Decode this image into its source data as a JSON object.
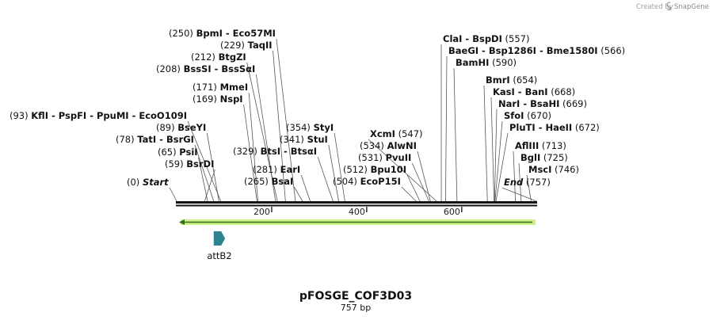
{
  "credit": {
    "prefix": "Created by",
    "brand": "SnapGene"
  },
  "map": {
    "name": "pFOSGE_COF3D03",
    "length_label": "757 bp",
    "length": 757
  },
  "ticks": [
    "200",
    "400",
    "600"
  ],
  "tick_values": [
    200,
    400,
    600
  ],
  "features": [
    {
      "name": "attB2",
      "start": 78,
      "end": 102,
      "color": "#2e8391"
    }
  ],
  "sites": [
    {
      "pos": "(0)",
      "names": [
        "Start"
      ],
      "italic": true,
      "loc": 0
    },
    {
      "pos": "(59)",
      "names": [
        "BsrDI"
      ],
      "loc": 59
    },
    {
      "pos": "(65)",
      "names": [
        "PsiI"
      ],
      "loc": 65
    },
    {
      "pos": "(78)",
      "names": [
        "TatI",
        "BsrGI"
      ],
      "loc": 78
    },
    {
      "pos": "(89)",
      "names": [
        "BseYI"
      ],
      "loc": 89
    },
    {
      "pos": "(93)",
      "names": [
        "KflI",
        "PspFI",
        "PpuMI",
        "EcoO109I"
      ],
      "loc": 93
    },
    {
      "pos": "(169)",
      "names": [
        "NspI"
      ],
      "loc": 169
    },
    {
      "pos": "(171)",
      "names": [
        "MmeI"
      ],
      "loc": 171
    },
    {
      "pos": "(208)",
      "names": [
        "BssSI",
        "BssSαI"
      ],
      "loc": 208
    },
    {
      "pos": "(212)",
      "names": [
        "BtgZI"
      ],
      "loc": 212
    },
    {
      "pos": "(229)",
      "names": [
        "TaqII"
      ],
      "loc": 229
    },
    {
      "pos": "(250)",
      "names": [
        "BpmI",
        "Eco57MI"
      ],
      "loc": 250
    },
    {
      "pos": "(265)",
      "names": [
        "BsaI"
      ],
      "loc": 265
    },
    {
      "pos": "(281)",
      "names": [
        "EarI"
      ],
      "loc": 281
    },
    {
      "pos": "(329)",
      "names": [
        "BtsI",
        "BtsαI"
      ],
      "loc": 329
    },
    {
      "pos": "(341)",
      "names": [
        "StuI"
      ],
      "loc": 341
    },
    {
      "pos": "(354)",
      "names": [
        "StyI"
      ],
      "loc": 354
    },
    {
      "pos": "(504)",
      "names": [
        "EcoP15I"
      ],
      "loc": 504
    },
    {
      "pos": "(512)",
      "names": [
        "Bpu10I"
      ],
      "loc": 512
    },
    {
      "pos": "(531)",
      "names": [
        "PvuII"
      ],
      "loc": 531
    },
    {
      "pos": "(534)",
      "names": [
        "AlwNI"
      ],
      "loc": 534
    },
    {
      "pos": "(547)",
      "names": [
        "XcmI"
      ],
      "loc": 547
    },
    {
      "pos": "(557)",
      "names": [
        "ClaI",
        "BspDI"
      ],
      "loc": 557
    },
    {
      "pos": "(566)",
      "names": [
        "BaeGI",
        "Bsp1286I",
        "Bme1580I"
      ],
      "loc": 566
    },
    {
      "pos": "(590)",
      "names": [
        "BamHI"
      ],
      "loc": 590
    },
    {
      "pos": "(654)",
      "names": [
        "BmrI"
      ],
      "loc": 654
    },
    {
      "pos": "(668)",
      "names": [
        "KasI",
        "BanI"
      ],
      "loc": 668
    },
    {
      "pos": "(669)",
      "names": [
        "NarI",
        "BsaHI"
      ],
      "loc": 669
    },
    {
      "pos": "(670)",
      "names": [
        "SfoI"
      ],
      "loc": 670
    },
    {
      "pos": "(672)",
      "names": [
        "PluTI",
        "HaeII"
      ],
      "loc": 672
    },
    {
      "pos": "(713)",
      "names": [
        "AflIII"
      ],
      "loc": 713
    },
    {
      "pos": "(725)",
      "names": [
        "BglI"
      ],
      "loc": 725
    },
    {
      "pos": "(746)",
      "names": [
        "MscI"
      ],
      "loc": 746
    },
    {
      "pos": "(757)",
      "names": [
        "End"
      ],
      "italic": true,
      "loc": 757
    }
  ]
}
